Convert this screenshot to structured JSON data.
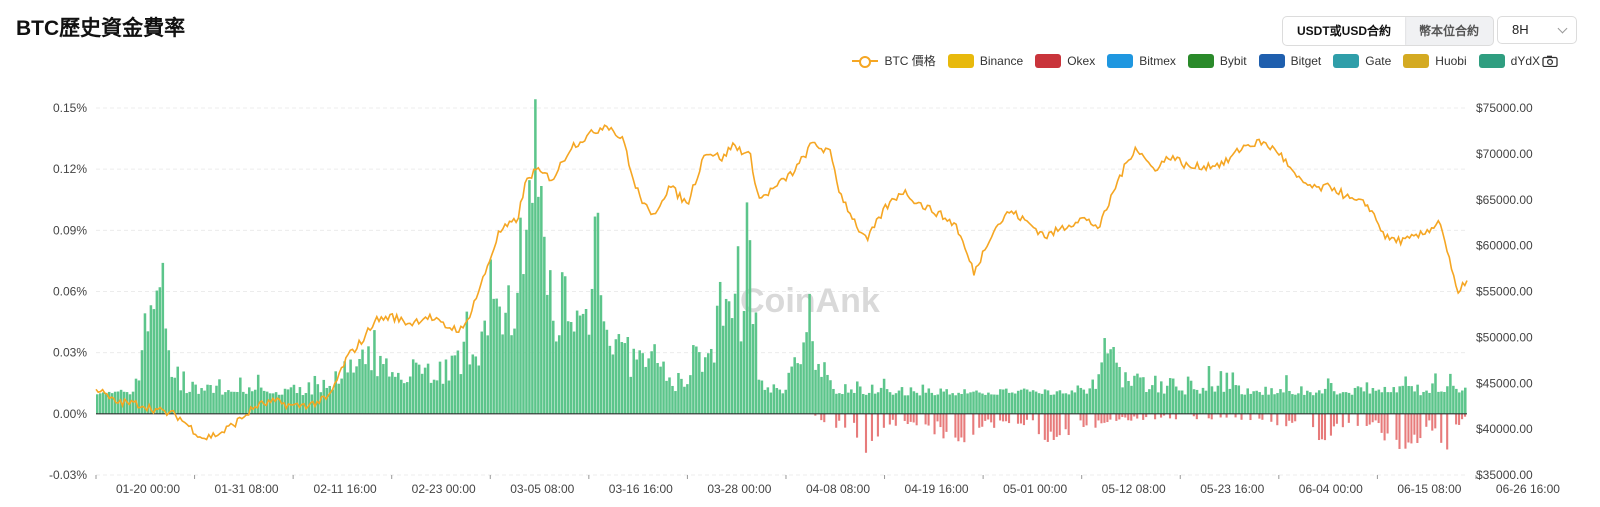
{
  "header": {
    "title": "BTC歷史資金費率",
    "tabs": [
      {
        "label": "USDT或USD合約",
        "active": true
      },
      {
        "label": "幣本位合約",
        "active": false
      }
    ],
    "interval": "8H"
  },
  "legend": {
    "items": [
      {
        "name": "BTC 價格",
        "type": "line",
        "color": "#f5a623"
      },
      {
        "name": "Binance",
        "type": "box",
        "color": "#e8b90c"
      },
      {
        "name": "Okex",
        "type": "box",
        "color": "#c9343b"
      },
      {
        "name": "Bitmex",
        "type": "box",
        "color": "#1f97e0"
      },
      {
        "name": "Bybit",
        "type": "box",
        "color": "#2a8a2a"
      },
      {
        "name": "Bitget",
        "type": "box",
        "color": "#1f5fae"
      },
      {
        "name": "Gate",
        "type": "box",
        "color": "#2f9ea9"
      },
      {
        "name": "Huobi",
        "type": "box",
        "color": "#d4aa22"
      },
      {
        "name": "dYdX",
        "type": "box",
        "color": "#2f9e80"
      }
    ],
    "camera_icon": "camera-icon"
  },
  "watermark": "CoinAnk",
  "chart_data": {
    "type": "bar",
    "y_left": {
      "ticks": [
        "0.15%",
        "0.12%",
        "0.09%",
        "0.06%",
        "0.03%",
        "0.00%",
        "-0.03%"
      ],
      "range": [
        -0.03,
        0.15
      ]
    },
    "y_right": {
      "ticks": [
        "$75000.00",
        "$70000.00",
        "$65000.00",
        "$60000.00",
        "$55000.00",
        "$50000.00",
        "$45000.00",
        "$40000.00",
        "$35000.00"
      ],
      "range": [
        35000,
        75000
      ]
    },
    "x_ticks": [
      "01-20 00:00",
      "01-31 08:00",
      "02-11 16:00",
      "02-23 00:00",
      "03-05 08:00",
      "03-16 16:00",
      "03-28 00:00",
      "04-08 08:00",
      "04-19 16:00",
      "05-01 00:00",
      "05-12 08:00",
      "05-23 16:00",
      "06-04 00:00",
      "06-15 08:00",
      "06-26 16:00"
    ],
    "positive_color": "#5cc58b",
    "negative_color": "#e77b7b",
    "price_color": "#f5a623",
    "grid": true,
    "price_anchors": [
      [
        0,
        44500
      ],
      [
        2,
        43000
      ],
      [
        5,
        42700
      ],
      [
        7,
        42000
      ],
      [
        9,
        41500
      ],
      [
        11,
        39800
      ],
      [
        12,
        39000
      ],
      [
        14,
        39600
      ],
      [
        16,
        41000
      ],
      [
        18,
        42600
      ],
      [
        20,
        43000
      ],
      [
        22,
        42500
      ],
      [
        24,
        42700
      ],
      [
        26,
        43400
      ],
      [
        28,
        47800
      ],
      [
        30,
        50000
      ],
      [
        31,
        51800
      ],
      [
        33,
        52300
      ],
      [
        35,
        51500
      ],
      [
        37,
        52300
      ],
      [
        39,
        51200
      ],
      [
        41,
        50800
      ],
      [
        43,
        55800
      ],
      [
        45,
        61500
      ],
      [
        47,
        62800
      ],
      [
        48,
        67000
      ],
      [
        49,
        68200
      ],
      [
        51,
        67300
      ],
      [
        53,
        70800
      ],
      [
        55,
        72000
      ],
      [
        57,
        73300
      ],
      [
        59,
        71200
      ],
      [
        60,
        66800
      ],
      [
        62,
        63000
      ],
      [
        64,
        66500
      ],
      [
        66,
        64500
      ],
      [
        68,
        70300
      ],
      [
        70,
        69500
      ],
      [
        71,
        71000
      ],
      [
        73,
        69800
      ],
      [
        74,
        65000
      ],
      [
        76,
        66500
      ],
      [
        78,
        68200
      ],
      [
        80,
        71200
      ],
      [
        82,
        70000
      ],
      [
        83,
        65800
      ],
      [
        85,
        62000
      ],
      [
        86,
        60500
      ],
      [
        88,
        64000
      ],
      [
        90,
        66000
      ],
      [
        92,
        64500
      ],
      [
        94,
        63500
      ],
      [
        96,
        62200
      ],
      [
        98,
        57000
      ],
      [
        100,
        61500
      ],
      [
        102,
        63800
      ],
      [
        104,
        62500
      ],
      [
        106,
        61000
      ],
      [
        108,
        62000
      ],
      [
        110,
        63000
      ],
      [
        112,
        62000
      ],
      [
        114,
        67000
      ],
      [
        116,
        70800
      ],
      [
        118,
        68300
      ],
      [
        120,
        69800
      ],
      [
        122,
        68500
      ],
      [
        124,
        68700
      ],
      [
        126,
        69000
      ],
      [
        128,
        70800
      ],
      [
        130,
        71300
      ],
      [
        132,
        70200
      ],
      [
        134,
        67300
      ],
      [
        136,
        66200
      ],
      [
        138,
        66400
      ],
      [
        140,
        65000
      ],
      [
        142,
        64400
      ],
      [
        144,
        60800
      ],
      [
        146,
        60500
      ],
      [
        148,
        61200
      ],
      [
        150,
        62700
      ],
      [
        151,
        58500
      ],
      [
        152,
        54500
      ],
      [
        153,
        56500
      ]
    ],
    "rate_anchors": [
      [
        0,
        0.01
      ],
      [
        4,
        0.011
      ],
      [
        6,
        0.062
      ],
      [
        7,
        0.09
      ],
      [
        8,
        0.028
      ],
      [
        10,
        0.015
      ],
      [
        14,
        0.012
      ],
      [
        20,
        0.012
      ],
      [
        26,
        0.015
      ],
      [
        28,
        0.025
      ],
      [
        30,
        0.03
      ],
      [
        32,
        0.025
      ],
      [
        35,
        0.028
      ],
      [
        38,
        0.024
      ],
      [
        40,
        0.028
      ],
      [
        42,
        0.035
      ],
      [
        44,
        0.052
      ],
      [
        45,
        0.06
      ],
      [
        47,
        0.075
      ],
      [
        48,
        0.09
      ],
      [
        49,
        0.143
      ],
      [
        50,
        0.09
      ],
      [
        51,
        0.055
      ],
      [
        52,
        0.075
      ],
      [
        53,
        0.045
      ],
      [
        55,
        0.06
      ],
      [
        56,
        0.125
      ],
      [
        57,
        0.05
      ],
      [
        58,
        0.04
      ],
      [
        60,
        0.03
      ],
      [
        62,
        0.032
      ],
      [
        64,
        0.02
      ],
      [
        66,
        0.018
      ],
      [
        68,
        0.04
      ],
      [
        70,
        0.05
      ],
      [
        71,
        0.065
      ],
      [
        72,
        0.055
      ],
      [
        73,
        0.09
      ],
      [
        74,
        0.02
      ],
      [
        76,
        0.012
      ],
      [
        80,
        0.04
      ],
      [
        81,
        0.018
      ],
      [
        84,
        0.015
      ],
      [
        88,
        0.012
      ],
      [
        92,
        0.012
      ],
      [
        96,
        0.011
      ],
      [
        100,
        0.01
      ],
      [
        104,
        0.012
      ],
      [
        108,
        0.01
      ],
      [
        112,
        0.018
      ],
      [
        113,
        0.04
      ],
      [
        114,
        0.025
      ],
      [
        116,
        0.02
      ],
      [
        118,
        0.015
      ],
      [
        120,
        0.018
      ],
      [
        124,
        0.015
      ],
      [
        128,
        0.012
      ],
      [
        132,
        0.012
      ],
      [
        136,
        0.012
      ],
      [
        140,
        0.012
      ],
      [
        144,
        0.012
      ],
      [
        148,
        0.013
      ],
      [
        153,
        0.013
      ]
    ],
    "negative_anchors": [
      [
        80,
        0
      ],
      [
        82,
        -0.005
      ],
      [
        84,
        -0.008
      ],
      [
        86,
        -0.015
      ],
      [
        88,
        -0.009
      ],
      [
        90,
        -0.003
      ],
      [
        95,
        -0.01
      ],
      [
        97,
        -0.012
      ],
      [
        99,
        -0.006
      ],
      [
        103,
        -0.004
      ],
      [
        107,
        -0.012
      ],
      [
        108,
        -0.016
      ],
      [
        110,
        -0.008
      ],
      [
        114,
        -0.003
      ],
      [
        120,
        -0.002
      ],
      [
        130,
        -0.003
      ],
      [
        135,
        -0.008
      ],
      [
        137,
        -0.012
      ],
      [
        140,
        -0.004
      ],
      [
        143,
        -0.006
      ],
      [
        145,
        -0.015
      ],
      [
        147,
        -0.014
      ],
      [
        149,
        -0.006
      ],
      [
        151,
        -0.016
      ],
      [
        153,
        -0.003
      ]
    ],
    "bar_count": 460
  }
}
